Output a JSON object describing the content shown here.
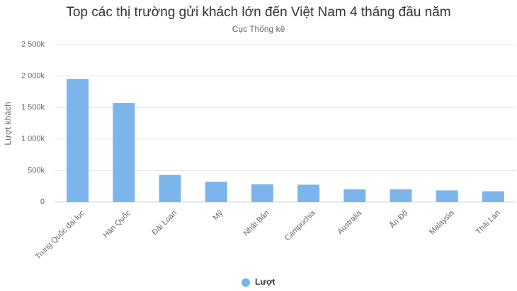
{
  "chart_data": {
    "type": "bar",
    "title": "Top các thị trường gửi khách lớn đến Việt Nam 4 tháng đầu năm",
    "subtitle": "Cục Thống kê",
    "y_label": "Lượt khách",
    "categories": [
      "Trung Quốc đại lục",
      "Hàn Quốc",
      "Đài Loan",
      "Mỹ",
      "Nhật Bản",
      "Campuchia",
      "Australia",
      "Ấn Độ",
      "Malaysia",
      "Thái Lan"
    ],
    "series": [
      {
        "name": "Lượt",
        "color": "#7cb5ec",
        "values": [
          1950000,
          1570000,
          430000,
          320000,
          280000,
          275000,
          200000,
          200000,
          185000,
          170000
        ]
      }
    ],
    "ylim": [
      0,
      2500000
    ],
    "yticks": [
      0,
      {
        "value": 500000,
        "label": "500k"
      },
      {
        "value": 1000000,
        "label": "1 000k"
      },
      {
        "value": 1500000,
        "label": "1 500k"
      },
      {
        "value": 2000000,
        "label": "2 000k"
      },
      {
        "value": 2500000,
        "label": "2 500k"
      }
    ],
    "grid": true,
    "legend": "bottom"
  }
}
